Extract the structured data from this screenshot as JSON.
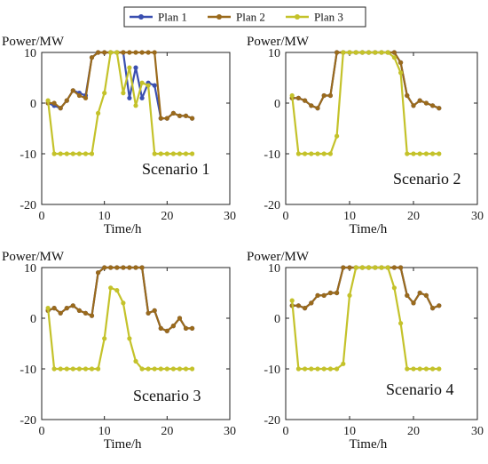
{
  "legend": {
    "entries": [
      {
        "label": "Plan 1",
        "color": "#3a4fb0"
      },
      {
        "label": "Plan 2",
        "color": "#9a6a1c"
      },
      {
        "label": "Plan 3",
        "color": "#c4c22a"
      }
    ]
  },
  "chart_data": [
    {
      "type": "line",
      "annotation": "Scenario 1",
      "ylabel": "Power/MW",
      "xlabel": "Time/h",
      "xlim": [
        0,
        30
      ],
      "ylim": [
        -20,
        10
      ],
      "xticks": [
        0,
        10,
        20,
        30
      ],
      "yticks": [
        10,
        0,
        -10,
        -20
      ],
      "series": [
        {
          "name": "Plan 1",
          "x": [
            1,
            2,
            3,
            4,
            5,
            6,
            7,
            8,
            9,
            10,
            11,
            12,
            13,
            14,
            15,
            16,
            17,
            18,
            19,
            20,
            21,
            22,
            23,
            24
          ],
          "y": [
            0,
            -0.5,
            -1,
            0.5,
            2.5,
            2,
            1.5,
            9,
            10,
            10,
            10,
            10,
            10,
            1,
            7,
            1,
            4,
            3.5,
            -3,
            -3,
            -2,
            -2.5,
            -2.5,
            -3
          ]
        },
        {
          "name": "Plan 2",
          "x": [
            1,
            2,
            3,
            4,
            5,
            6,
            7,
            8,
            9,
            10,
            11,
            12,
            13,
            14,
            15,
            16,
            17,
            18,
            19,
            20,
            21,
            22,
            23,
            24
          ],
          "y": [
            0,
            0,
            -1,
            0.5,
            2.5,
            1.5,
            1,
            9,
            10,
            10,
            10,
            10,
            10,
            10,
            10,
            10,
            10,
            10,
            -3,
            -3,
            -2,
            -2.5,
            -2.5,
            -3
          ]
        },
        {
          "name": "Plan 3",
          "x": [
            1,
            2,
            3,
            4,
            5,
            6,
            7,
            8,
            9,
            10,
            11,
            12,
            13,
            14,
            15,
            16,
            17,
            18,
            19,
            20,
            21,
            22,
            23,
            24
          ],
          "y": [
            0.5,
            -10,
            -10,
            -10,
            -10,
            -10,
            -10,
            -10,
            -2,
            2,
            10,
            10,
            2,
            7,
            -0.5,
            4,
            3.5,
            -10,
            -10,
            -10,
            -10,
            -10,
            -10,
            -10
          ]
        }
      ]
    },
    {
      "type": "line",
      "annotation": "Scenario 2",
      "ylabel": "Power/MW",
      "xlabel": "Time/h",
      "xlim": [
        0,
        30
      ],
      "ylim": [
        -20,
        10
      ],
      "xticks": [
        0,
        10,
        20,
        30
      ],
      "yticks": [
        10,
        0,
        -10,
        -20
      ],
      "series": [
        {
          "name": "Plan 1",
          "x": [
            1,
            2,
            3,
            4,
            5,
            6,
            7,
            8,
            9,
            10,
            11,
            12,
            13,
            14,
            15,
            16,
            17,
            18,
            19,
            20,
            21,
            22,
            23,
            24
          ],
          "y": [
            1,
            1,
            0.5,
            -0.5,
            -1,
            1.5,
            1.5,
            10,
            10,
            10,
            10,
            10,
            10,
            10,
            10,
            10,
            10,
            8,
            1.5,
            -0.5,
            0.5,
            0,
            -0.5,
            -1
          ]
        },
        {
          "name": "Plan 2",
          "x": [
            1,
            2,
            3,
            4,
            5,
            6,
            7,
            8,
            9,
            10,
            11,
            12,
            13,
            14,
            15,
            16,
            17,
            18,
            19,
            20,
            21,
            22,
            23,
            24
          ],
          "y": [
            1,
            1,
            0.5,
            -0.5,
            -1,
            1.5,
            1.5,
            10,
            10,
            10,
            10,
            10,
            10,
            10,
            10,
            10,
            10,
            8,
            1.5,
            -0.5,
            0.5,
            0,
            -0.5,
            -1
          ]
        },
        {
          "name": "Plan 3",
          "x": [
            1,
            2,
            3,
            4,
            5,
            6,
            7,
            8,
            9,
            10,
            11,
            12,
            13,
            14,
            15,
            16,
            17,
            18,
            19,
            20,
            21,
            22,
            23,
            24
          ],
          "y": [
            1.5,
            -10,
            -10,
            -10,
            -10,
            -10,
            -10,
            -6.5,
            10,
            10,
            10,
            10,
            10,
            10,
            10,
            10,
            9,
            6,
            -10,
            -10,
            -10,
            -10,
            -10,
            -10
          ]
        }
      ]
    },
    {
      "type": "line",
      "annotation": "Scenario 3",
      "ylabel": "Power/MW",
      "xlabel": "Time/h",
      "xlim": [
        0,
        30
      ],
      "ylim": [
        -20,
        10
      ],
      "xticks": [
        0,
        10,
        20,
        30
      ],
      "yticks": [
        10,
        0,
        -10,
        -20
      ],
      "series": [
        {
          "name": "Plan 1",
          "x": [
            1,
            2,
            3,
            4,
            5,
            6,
            7,
            8,
            9,
            10,
            11,
            12,
            13,
            14,
            15,
            16,
            17,
            18,
            19,
            20,
            21,
            22,
            23,
            24
          ],
          "y": [
            1.5,
            2,
            1,
            2,
            2.5,
            1.5,
            1,
            0.5,
            9,
            10,
            10,
            10,
            10,
            10,
            10,
            10,
            1,
            1.5,
            -2,
            -2.5,
            -1.5,
            0,
            -2,
            -2
          ]
        },
        {
          "name": "Plan 2",
          "x": [
            1,
            2,
            3,
            4,
            5,
            6,
            7,
            8,
            9,
            10,
            11,
            12,
            13,
            14,
            15,
            16,
            17,
            18,
            19,
            20,
            21,
            22,
            23,
            24
          ],
          "y": [
            1.5,
            2,
            1,
            2,
            2.5,
            1.5,
            1,
            0.5,
            9,
            10,
            10,
            10,
            10,
            10,
            10,
            10,
            1,
            1.5,
            -2,
            -2.5,
            -1.5,
            0,
            -2,
            -2
          ]
        },
        {
          "name": "Plan 3",
          "x": [
            1,
            2,
            3,
            4,
            5,
            6,
            7,
            8,
            9,
            10,
            11,
            12,
            13,
            14,
            15,
            16,
            17,
            18,
            19,
            20,
            21,
            22,
            23,
            24
          ],
          "y": [
            2,
            -10,
            -10,
            -10,
            -10,
            -10,
            -10,
            -10,
            -10,
            -4,
            6,
            5.5,
            3,
            -4,
            -8.5,
            -10,
            -10,
            -10,
            -10,
            -10,
            -10,
            -10,
            -10,
            -10
          ]
        }
      ]
    },
    {
      "type": "line",
      "annotation": "Scenario 4",
      "ylabel": "Power/MW",
      "xlabel": "Time/h",
      "xlim": [
        0,
        30
      ],
      "ylim": [
        -20,
        10
      ],
      "xticks": [
        0,
        10,
        20,
        30
      ],
      "yticks": [
        10,
        0,
        -10,
        -20
      ],
      "series": [
        {
          "name": "Plan 1",
          "x": [
            1,
            2,
            3,
            4,
            5,
            6,
            7,
            8,
            9,
            10,
            11,
            12,
            13,
            14,
            15,
            16,
            17,
            18,
            19,
            20,
            21,
            22,
            23,
            24
          ],
          "y": [
            2.5,
            2.5,
            2,
            3,
            4.5,
            4.5,
            5,
            5,
            10,
            10,
            10,
            10,
            10,
            10,
            10,
            10,
            10,
            10,
            4.5,
            3,
            5,
            4.5,
            2,
            2.5
          ]
        },
        {
          "name": "Plan 2",
          "x": [
            1,
            2,
            3,
            4,
            5,
            6,
            7,
            8,
            9,
            10,
            11,
            12,
            13,
            14,
            15,
            16,
            17,
            18,
            19,
            20,
            21,
            22,
            23,
            24
          ],
          "y": [
            2.5,
            2.5,
            2,
            3,
            4.5,
            4.5,
            5,
            5,
            10,
            10,
            10,
            10,
            10,
            10,
            10,
            10,
            10,
            10,
            4.5,
            3,
            5,
            4.5,
            2,
            2.5
          ]
        },
        {
          "name": "Plan 3",
          "x": [
            1,
            2,
            3,
            4,
            5,
            6,
            7,
            8,
            9,
            10,
            11,
            12,
            13,
            14,
            15,
            16,
            17,
            18,
            19,
            20,
            21,
            22,
            23,
            24
          ],
          "y": [
            3.5,
            -10,
            -10,
            -10,
            -10,
            -10,
            -10,
            -10,
            -9,
            4.5,
            10,
            10,
            10,
            10,
            10,
            10,
            6,
            -1,
            -10,
            -10,
            -10,
            -10,
            -10,
            -10
          ]
        }
      ]
    }
  ]
}
